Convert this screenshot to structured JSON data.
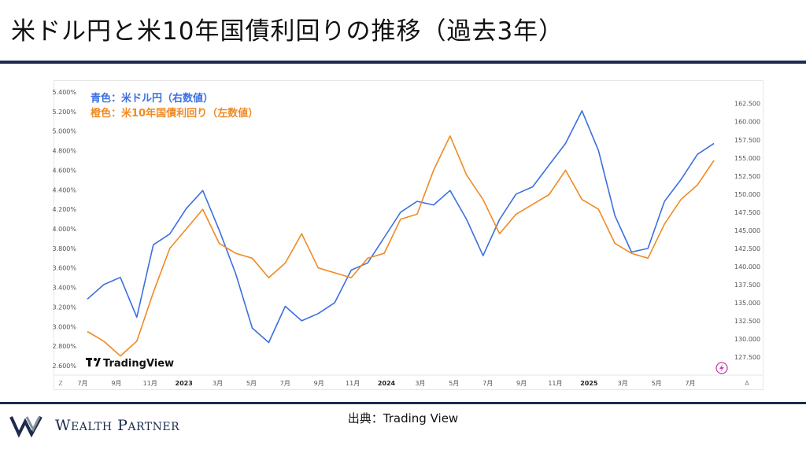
{
  "page": {
    "title": "米ドル円と米10年国債利回りの推移（過去3年）"
  },
  "footer": {
    "source": "出典：Trading View",
    "brand": "Wealth Partner"
  },
  "chart_data": {
    "type": "line",
    "legend": [
      {
        "label": "青色：米ドル円（右数値）",
        "color": "#3b6fe0"
      },
      {
        "label": "橙色：米10年国債利回り（左数値）",
        "color": "#f08a24"
      }
    ],
    "watermark": "TradingView",
    "x_tick_labels": [
      "7月",
      "9月",
      "11月",
      "2023",
      "3月",
      "5月",
      "7月",
      "9月",
      "11月",
      "2024",
      "3月",
      "5月",
      "7月",
      "9月",
      "11月",
      "2025",
      "3月",
      "5月",
      "7月"
    ],
    "x_corner_left": "Z",
    "x_corner_right": "A",
    "y_left": {
      "ticks": [
        "5.400%",
        "5.200%",
        "5.000%",
        "4.800%",
        "4.600%",
        "4.400%",
        "4.200%",
        "4.000%",
        "3.800%",
        "3.600%",
        "3.400%",
        "3.200%",
        "3.000%",
        "2.800%",
        "2.600%"
      ],
      "ylim": [
        2.6,
        5.4
      ]
    },
    "y_right": {
      "ticks": [
        "162.500",
        "160.000",
        "157.500",
        "155.000",
        "152.500",
        "150.000",
        "147.500",
        "145.000",
        "142.500",
        "140.000",
        "137.500",
        "135.000",
        "132.500",
        "130.000",
        "127.500"
      ],
      "ylim": [
        126.3,
        164.1
      ]
    },
    "series": [
      {
        "axis": "right",
        "color": "#3b6fe0",
        "x": [
          0,
          1,
          2,
          3,
          4,
          5,
          6,
          7,
          8,
          9,
          10,
          11,
          12,
          13,
          14,
          15,
          16,
          17,
          18,
          19,
          20,
          21,
          22,
          23,
          24,
          25,
          26,
          27,
          28,
          29,
          30,
          31,
          32,
          33,
          34,
          35,
          36,
          37,
          38
        ],
        "values": [
          135.5,
          137.5,
          138.5,
          133.0,
          143.0,
          144.5,
          148.0,
          150.5,
          145.0,
          139.0,
          131.5,
          129.5,
          134.5,
          132.5,
          133.5,
          135.0,
          139.5,
          140.5,
          144.0,
          147.5,
          149.0,
          148.5,
          150.5,
          146.5,
          141.5,
          146.5,
          150.0,
          151.0,
          154.0,
          157.0,
          161.5,
          156.0,
          147.0,
          142.0,
          142.5,
          149.0,
          152.0,
          155.5,
          157.0
        ]
      },
      {
        "axis": "left",
        "color": "#f08a24",
        "x": [
          0,
          1,
          2,
          3,
          4,
          5,
          6,
          7,
          8,
          9,
          10,
          11,
          12,
          13,
          14,
          15,
          16,
          17,
          18,
          19,
          20,
          21,
          22,
          23,
          24,
          25,
          26,
          27,
          28,
          29,
          30,
          31,
          32,
          33,
          34,
          35,
          36,
          37,
          38
        ],
        "values": [
          2.95,
          2.85,
          2.7,
          2.85,
          3.35,
          3.8,
          4.0,
          4.2,
          3.85,
          3.75,
          3.7,
          3.5,
          3.65,
          3.95,
          3.6,
          3.55,
          3.5,
          3.7,
          3.75,
          4.1,
          4.15,
          4.6,
          4.95,
          4.55,
          4.3,
          3.95,
          4.15,
          4.25,
          4.35,
          4.6,
          4.3,
          4.2,
          3.85,
          3.75,
          3.7,
          4.05,
          4.3,
          4.45,
          4.7
        ]
      }
    ],
    "grid": false
  }
}
